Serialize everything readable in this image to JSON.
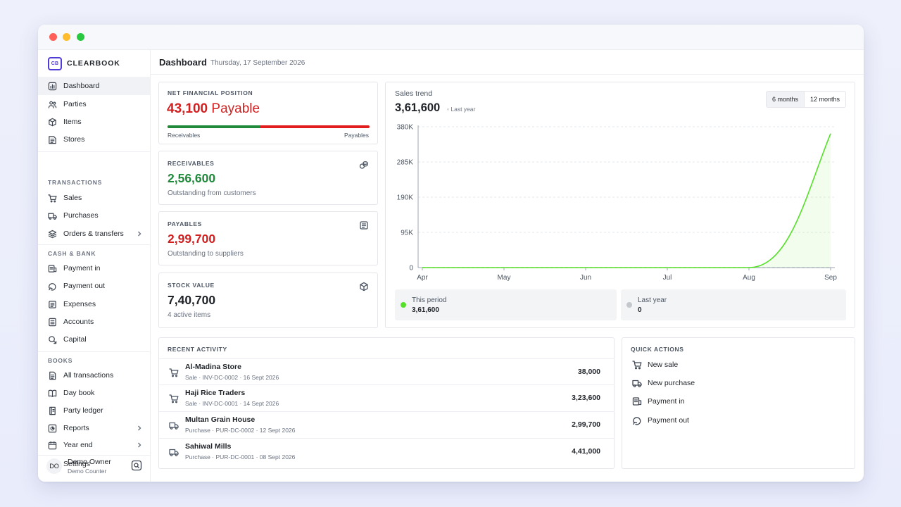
{
  "app": {
    "brand_logo": "CB",
    "brand_name": "CLEARBOOK"
  },
  "sidebar": {
    "items": [
      {
        "label": "Dashboard",
        "icon": "dashboard-icon",
        "active": true
      },
      {
        "label": "Parties",
        "icon": "users-icon"
      },
      {
        "label": "Items",
        "icon": "box-icon"
      },
      {
        "label": "Stores",
        "icon": "store-icon"
      }
    ],
    "transactions_label": "TRANSACTIONS",
    "transactions": [
      {
        "label": "Sales",
        "icon": "cart-icon"
      },
      {
        "label": "Purchases",
        "icon": "truck-icon"
      },
      {
        "label": "Orders & transfers",
        "icon": "layers-icon",
        "has_submenu": true
      }
    ],
    "cash_label": "CASH & BANK",
    "cash": [
      {
        "label": "Payment in",
        "icon": "payment-in-icon"
      },
      {
        "label": "Payment out",
        "icon": "payment-out-icon"
      },
      {
        "label": "Expenses",
        "icon": "wallet-icon"
      },
      {
        "label": "Accounts",
        "icon": "accounts-icon"
      },
      {
        "label": "Capital",
        "icon": "capital-icon"
      }
    ],
    "books_label": "BOOKS",
    "books": [
      {
        "label": "All transactions",
        "icon": "document-icon"
      },
      {
        "label": "Day book",
        "icon": "book-icon"
      },
      {
        "label": "Party ledger",
        "icon": "ledger-icon"
      },
      {
        "label": "Reports",
        "icon": "reports-icon",
        "has_submenu": true
      },
      {
        "label": "Year end",
        "icon": "calendar-icon",
        "has_submenu": true
      }
    ],
    "settings_label": "Settings",
    "user": {
      "initials": "DO",
      "name": "Demo Owner",
      "subtitle": "Demo Counter"
    }
  },
  "header": {
    "title": "Dashboard",
    "date": "Thursday, 17 September 2026"
  },
  "net_position": {
    "label": "NET FINANCIAL POSITION",
    "amount": "43,100",
    "direction": "Payable",
    "receivables_share": 0.46,
    "bar_left_label": "Receivables",
    "bar_right_label": "Payables",
    "color_receivable": "#1e8a3a",
    "color_payable": "#e11d1d"
  },
  "receivables": {
    "label": "RECEIVABLES",
    "value": "2,56,600",
    "sub": "Outstanding from customers",
    "color": "#1e8a3a",
    "icon": "coins-icon"
  },
  "payables": {
    "label": "PAYABLES",
    "value": "2,99,700",
    "sub": "Outstanding to suppliers",
    "color": "#d21f1f",
    "icon": "wallet-icon"
  },
  "stock": {
    "label": "STOCK VALUE",
    "value": "7,40,700",
    "sub": "4 active items",
    "color": "#1f2328",
    "icon": "cube-icon"
  },
  "sales_trend": {
    "title": "Sales trend",
    "total": "3,61,600",
    "compare_label": "Last year",
    "ranges": [
      "6 months",
      "12 months"
    ],
    "active_range": "6 months",
    "legend": [
      {
        "name": "This period",
        "value": "3,61,600",
        "color": "#55e02a"
      },
      {
        "name": "Last year",
        "value": "0",
        "color": "#c4c7cc"
      }
    ]
  },
  "chart_data": {
    "type": "line",
    "title": "Sales trend",
    "x": [
      "Apr",
      "May",
      "Jun",
      "Jul",
      "Aug",
      "Sep"
    ],
    "series": [
      {
        "name": "This period",
        "values": [
          0,
          0,
          0,
          0,
          0,
          361600
        ]
      },
      {
        "name": "Last year",
        "values": [
          0,
          0,
          0,
          0,
          0,
          0
        ]
      }
    ],
    "yticks": [
      "0",
      "95K",
      "190K",
      "285K",
      "380K"
    ],
    "ylim": [
      0,
      380000
    ],
    "grid": true,
    "colors": {
      "this_period": "#55e02a",
      "last_year": "#9ca3af"
    }
  },
  "activity": {
    "label": "RECENT ACTIVITY",
    "rows": [
      {
        "name": "Al-Madina Store",
        "meta": "Sale · INV-DC-0002 · 16 Sept 2026",
        "amount": "38,000",
        "icon": "cart-icon"
      },
      {
        "name": "Haji Rice Traders",
        "meta": "Sale · INV-DC-0001 · 14 Sept 2026",
        "amount": "3,23,600",
        "icon": "cart-icon"
      },
      {
        "name": "Multan Grain House",
        "meta": "Purchase · PUR-DC-0002 · 12 Sept 2026",
        "amount": "2,99,700",
        "icon": "truck-icon"
      },
      {
        "name": "Sahiwal Mills",
        "meta": "Purchase · PUR-DC-0001 · 08 Sept 2026",
        "amount": "4,41,000",
        "icon": "truck-icon"
      }
    ]
  },
  "quick_actions": {
    "label": "QUICK ACTIONS",
    "items": [
      {
        "label": "New sale",
        "icon": "cart-icon"
      },
      {
        "label": "New purchase",
        "icon": "truck-icon"
      },
      {
        "label": "Payment in",
        "icon": "payment-in-icon"
      },
      {
        "label": "Payment out",
        "icon": "payment-out-icon"
      }
    ]
  }
}
